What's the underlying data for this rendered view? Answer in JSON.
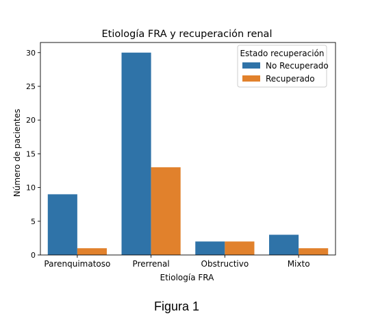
{
  "chart_data": {
    "type": "bar",
    "title": "Etiología FRA y recuperación renal",
    "xlabel": "Etiología FRA",
    "ylabel": "Número de pacientes",
    "categories": [
      "Parenquimatoso",
      "Prerrenal",
      "Obstructivo",
      "Mixto"
    ],
    "series": [
      {
        "name": "No Recuperado",
        "values": [
          9,
          30,
          2,
          3
        ],
        "color": "#2f73a8"
      },
      {
        "name": "Recuperado",
        "values": [
          1,
          13,
          2,
          1
        ],
        "color": "#e1812c"
      }
    ],
    "ylim": [
      0,
      31.5
    ],
    "yticks": [
      0,
      5,
      10,
      15,
      20,
      25,
      30
    ],
    "grid": false,
    "legend": {
      "title": "Estado recuperación",
      "placement": "top-right"
    }
  },
  "caption": "Figura 1"
}
